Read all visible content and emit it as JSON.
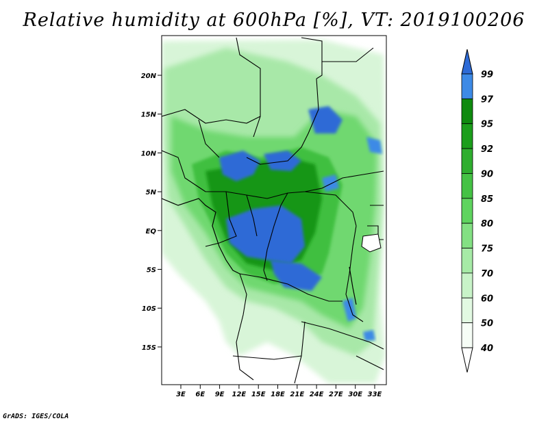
{
  "title": "Relative humidity at 600hPa [%], VT: 2019100206",
  "credit": "GrADS: IGES/COLA",
  "map": {
    "lon_range": [
      0,
      35
    ],
    "lat_range": [
      -20,
      25
    ],
    "lat_ticks": [
      "20N",
      "15N",
      "10N",
      "5N",
      "EQ",
      "5S",
      "10S",
      "15S"
    ],
    "lon_ticks": [
      "3E",
      "6E",
      "9E",
      "12E",
      "15E",
      "18E",
      "21E",
      "24E",
      "27E",
      "30E",
      "33E"
    ]
  },
  "colorbar": {
    "labels": [
      "99",
      "97",
      "95",
      "92",
      "90",
      "85",
      "80",
      "75",
      "70",
      "60",
      "50",
      "40"
    ],
    "colors": {
      "c99": "#2e6bd6",
      "c97": "#3d8ae6",
      "c95": "#0f8a0f",
      "c92": "#1c9e1c",
      "c90": "#2fae2f",
      "c85": "#45c245",
      "c80": "#5fd45f",
      "c75": "#83e083",
      "c70": "#a6eaa6",
      "c60": "#c8f3c8",
      "c50": "#e2f9e2",
      "c40": "#f6fdf6"
    }
  }
}
